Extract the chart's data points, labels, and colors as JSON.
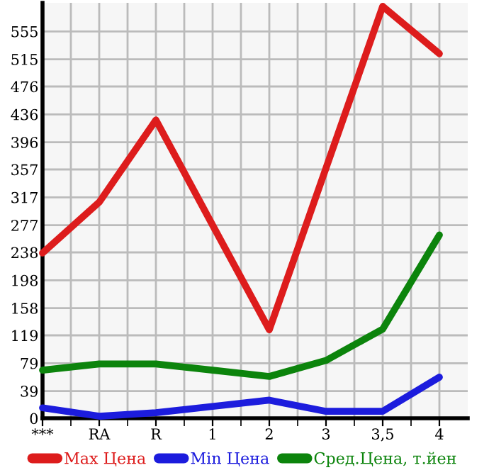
{
  "chart_data": {
    "type": "line",
    "categories": [
      "***",
      "RA",
      "R",
      "1",
      "2",
      "3",
      "3,5",
      "4"
    ],
    "series": [
      {
        "name": "Max Цена",
        "color": "#dd1c1c",
        "values": [
          237,
          310,
          428,
          277,
          127,
          359,
          591,
          523
        ]
      },
      {
        "name": "Min Цена",
        "color": "#1c1cdd",
        "values": [
          15,
          3,
          8,
          17,
          26,
          10,
          10,
          59
        ]
      },
      {
        "name": "Сред.Цена, т.йен",
        "color": "#0c840c",
        "values": [
          69,
          78,
          78,
          69,
          60,
          83,
          128,
          263
        ]
      }
    ],
    "ylim": [
      0,
      596
    ],
    "yticks": [
      0,
      39,
      79,
      119,
      158,
      198,
      238,
      277,
      317,
      357,
      396,
      436,
      476,
      515,
      555
    ],
    "grid": true,
    "legend": "bottom",
    "marker": "none",
    "line_style": "solid"
  }
}
